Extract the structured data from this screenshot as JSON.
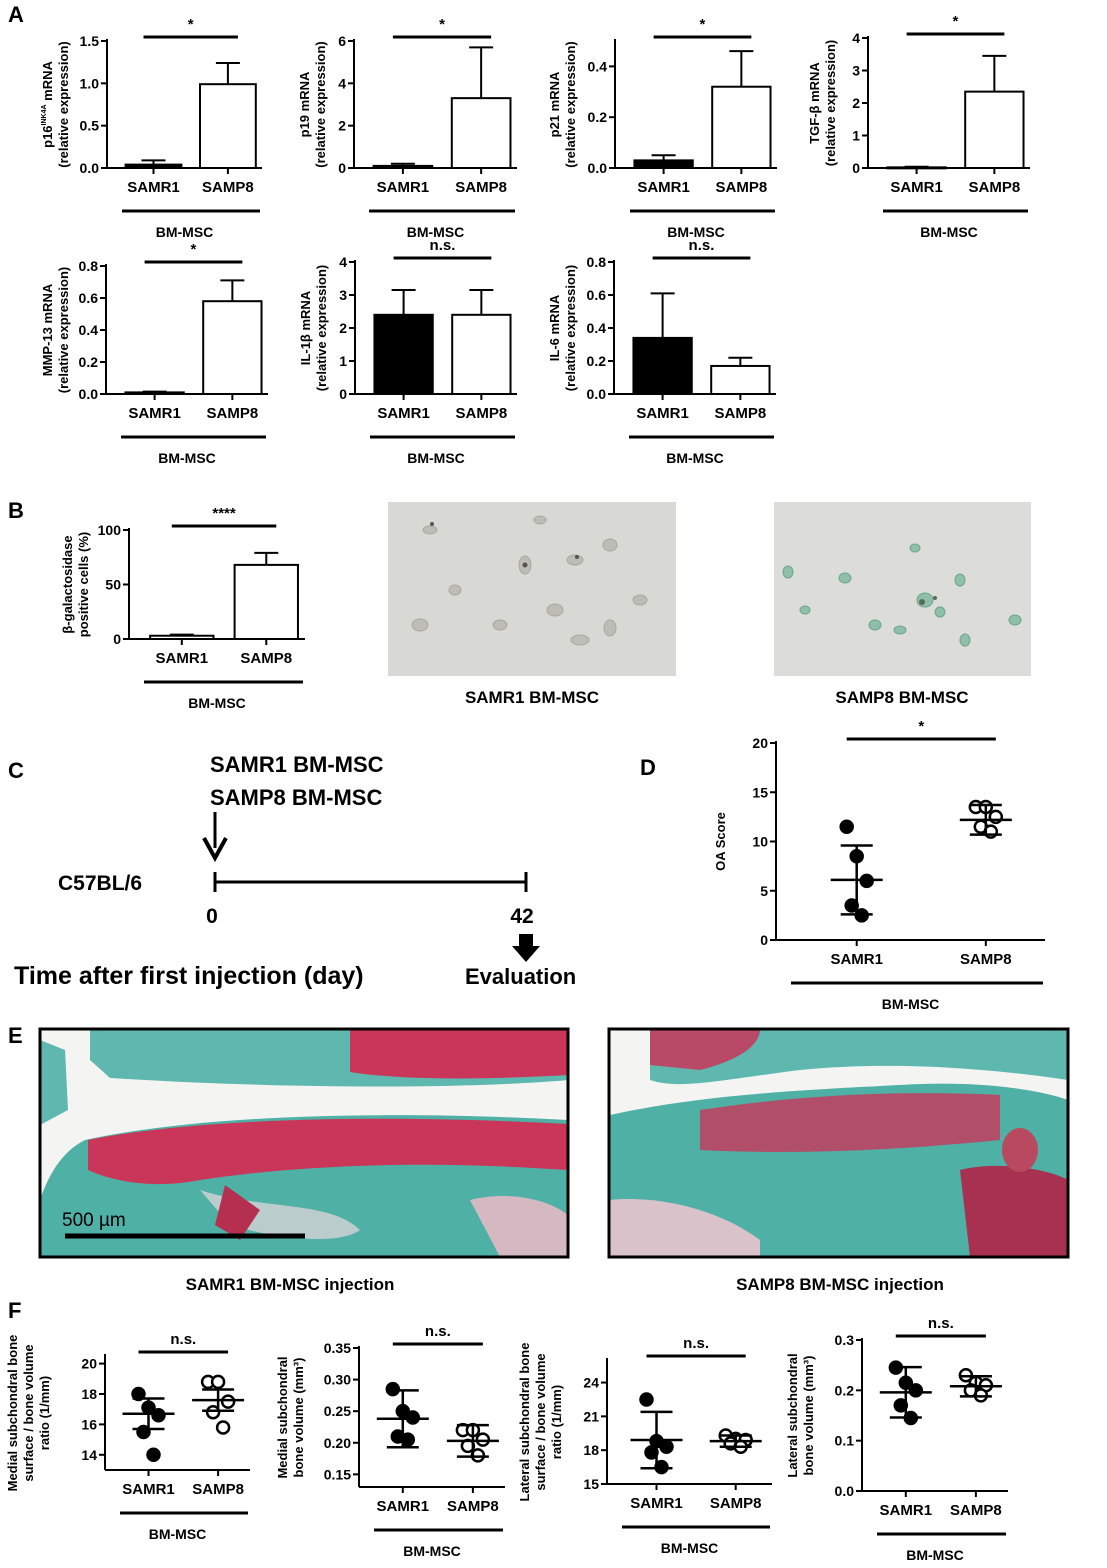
{
  "panels": {
    "A": "A",
    "B": "B",
    "C": "C",
    "D": "D",
    "E": "E",
    "F": "F"
  },
  "chart_data": [
    {
      "id": "a1",
      "type": "bar",
      "categories": [
        "SAMR1",
        "SAMP8"
      ],
      "values": [
        0.04,
        0.99
      ],
      "errors": [
        0.05,
        0.25
      ],
      "fills": [
        "#000000",
        "#ffffff"
      ],
      "ylabel_line1": "p16",
      "ylabel_sup": "INK4A",
      "ylabel_rest": " mRNA",
      "ylabel_line2": "(relative expression)",
      "ticks": [
        "0.0",
        "0.5",
        "1.0",
        "1.5"
      ],
      "ylim": [
        0,
        1.5
      ],
      "sig": "*",
      "group": "BM-MSC"
    },
    {
      "id": "a2",
      "type": "bar",
      "categories": [
        "SAMR1",
        "SAMP8"
      ],
      "values": [
        0.1,
        3.3
      ],
      "errors": [
        0.1,
        2.4
      ],
      "fills": [
        "#000000",
        "#ffffff"
      ],
      "ylabel_line1": "p19 mRNA",
      "ylabel_line2": "(relative expression)",
      "ticks": [
        "0",
        "2",
        "4",
        "6"
      ],
      "ylim": [
        0,
        6
      ],
      "sig": "*",
      "group": "BM-MSC"
    },
    {
      "id": "a3",
      "type": "bar",
      "categories": [
        "SAMR1",
        "SAMP8"
      ],
      "values": [
        0.03,
        0.32
      ],
      "errors": [
        0.02,
        0.14
      ],
      "fills": [
        "#000000",
        "#ffffff"
      ],
      "ylabel_line1": "p21 mRNA",
      "ylabel_line2": "(relative expression)",
      "ticks": [
        "0.0",
        "0.2",
        "0.4"
      ],
      "ylim": [
        0,
        0.5
      ],
      "sig": "*",
      "group": "BM-MSC"
    },
    {
      "id": "a4",
      "type": "bar",
      "categories": [
        "SAMR1",
        "SAMP8"
      ],
      "values": [
        0.02,
        2.35
      ],
      "errors": [
        0.02,
        1.1
      ],
      "fills": [
        "#000000",
        "#ffffff"
      ],
      "ylabel_line1": "TGF-β mRNA",
      "ylabel_line2": "(relative expression)",
      "ticks": [
        "0",
        "1",
        "2",
        "3",
        "4"
      ],
      "ylim": [
        0,
        4
      ],
      "sig": "*",
      "group": "BM-MSC"
    },
    {
      "id": "a5",
      "type": "bar",
      "categories": [
        "SAMR1",
        "SAMP8"
      ],
      "values": [
        0.01,
        0.58
      ],
      "errors": [
        0.005,
        0.13
      ],
      "fills": [
        "#000000",
        "#ffffff"
      ],
      "ylabel_line1": "MMP-13 mRNA",
      "ylabel_line2": "(relative expression)",
      "ticks": [
        "0.0",
        "0.2",
        "0.4",
        "0.6",
        "0.8"
      ],
      "ylim": [
        0,
        0.8
      ],
      "sig": "*",
      "group": "BM-MSC"
    },
    {
      "id": "a6",
      "type": "bar",
      "categories": [
        "SAMR1",
        "SAMP8"
      ],
      "values": [
        2.4,
        2.4
      ],
      "errors": [
        0.75,
        0.75
      ],
      "fills": [
        "#000000",
        "#ffffff"
      ],
      "ylabel_line1": "IL-1β mRNA",
      "ylabel_line2": "(relative expression)",
      "ticks": [
        "0",
        "1",
        "2",
        "3",
        "4"
      ],
      "ylim": [
        0,
        4
      ],
      "sig": "n.s.",
      "group": "BM-MSC"
    },
    {
      "id": "a7",
      "type": "bar",
      "categories": [
        "SAMR1",
        "SAMP8"
      ],
      "values": [
        0.34,
        0.17
      ],
      "errors": [
        0.27,
        0.05
      ],
      "fills": [
        "#000000",
        "#ffffff"
      ],
      "ylabel_line1": "IL-6 mRNA",
      "ylabel_line2": "(relative expression)",
      "ticks": [
        "0.0",
        "0.2",
        "0.4",
        "0.6",
        "0.8"
      ],
      "ylim": [
        0,
        0.8
      ],
      "sig": "n.s.",
      "group": "BM-MSC"
    },
    {
      "id": "b1",
      "type": "bar",
      "categories": [
        "SAMR1",
        "SAMP8"
      ],
      "values": [
        3,
        68
      ],
      "errors": [
        1,
        11
      ],
      "fills": [
        "#ffffff",
        "#ffffff"
      ],
      "ylabel_line1": "β-galactosidase",
      "ylabel_line2": "positive cells (%)",
      "ticks": [
        "0",
        "50",
        "100"
      ],
      "ylim": [
        0,
        100
      ],
      "sig": "****",
      "group": "BM-MSC"
    },
    {
      "id": "d",
      "type": "scatter",
      "categories": [
        "SAMR1",
        "SAMP8"
      ],
      "ylabel_line1": "OA Score",
      "ticks": [
        "0",
        "5",
        "10",
        "15",
        "20"
      ],
      "ylim": [
        0,
        20
      ],
      "points": [
        [
          11.5,
          8.5,
          6,
          3.5,
          2.5
        ],
        [
          13.5,
          13.5,
          12.5,
          11.5,
          11
        ]
      ],
      "means": [
        6.1,
        12.2
      ],
      "sds": [
        3.5,
        1.5
      ],
      "filled": [
        true,
        false
      ],
      "sig": "*",
      "group": "BM-MSC"
    },
    {
      "id": "f1",
      "type": "scatter",
      "categories": [
        "SAMR1",
        "SAMP8"
      ],
      "ylabel_line1": "Medial subchondral bone",
      "ylabel_line2": "surface / bone volume",
      "ylabel_line3": "ratio (1/mm)",
      "ticks": [
        "14",
        "16",
        "18",
        "20"
      ],
      "ylim": [
        13,
        20.5
      ],
      "points": [
        [
          18,
          17.1,
          16.6,
          15.5,
          14
        ],
        [
          18.8,
          18.8,
          17.5,
          16.8,
          15.8
        ]
      ],
      "means": [
        16.7,
        17.6
      ],
      "sds": [
        1.0,
        0.7
      ],
      "filled": [
        true,
        false
      ],
      "sig": "n.s.",
      "group": "BM-MSC"
    },
    {
      "id": "f2",
      "type": "scatter",
      "categories": [
        "SAMR1",
        "SAMP8"
      ],
      "ylabel_line1": "Medial subchondral",
      "ylabel_line2": "bone volume (mm³)",
      "ticks": [
        "0.15",
        "0.20",
        "0.25",
        "0.30",
        "0.35"
      ],
      "ylim": [
        0.13,
        0.35
      ],
      "points": [
        [
          0.285,
          0.25,
          0.24,
          0.21,
          0.205
        ],
        [
          0.22,
          0.22,
          0.205,
          0.195,
          0.18
        ]
      ],
      "means": [
        0.238,
        0.203
      ],
      "sds": [
        0.045,
        0.025
      ],
      "filled": [
        true,
        false
      ],
      "sig": "n.s.",
      "group": "BM-MSC"
    },
    {
      "id": "f3",
      "type": "scatter",
      "categories": [
        "SAMR1",
        "SAMP8"
      ],
      "ylabel_line1": "Lateral subchondral bone",
      "ylabel_line2": "surface / bone volume",
      "ylabel_line3": "ratio (1/mm)",
      "ticks": [
        "15",
        "18",
        "21",
        "24"
      ],
      "ylim": [
        15,
        26
      ],
      "points": [
        [
          22.5,
          18.8,
          18.3,
          17.8,
          16.5
        ],
        [
          19.3,
          19,
          18.9,
          18.6,
          18.3
        ]
      ],
      "means": [
        18.9,
        18.8
      ],
      "sds": [
        2.5,
        0.5
      ],
      "filled": [
        true,
        false
      ],
      "sig": "n.s.",
      "group": "BM-MSC"
    },
    {
      "id": "f4",
      "type": "scatter",
      "categories": [
        "SAMR1",
        "SAMP8"
      ],
      "ylabel_line1": "Lateral subchondral",
      "ylabel_line2": "bone volume (mm³)",
      "ticks": [
        "0.0",
        "0.1",
        "0.2",
        "0.3"
      ],
      "ylim": [
        0,
        0.3
      ],
      "points": [
        [
          0.245,
          0.215,
          0.2,
          0.17,
          0.145
        ],
        [
          0.23,
          0.215,
          0.21,
          0.2,
          0.19
        ]
      ],
      "means": [
        0.196,
        0.208
      ],
      "sds": [
        0.05,
        0.02
      ],
      "filled": [
        true,
        false
      ],
      "sig": "n.s.",
      "group": "BM-MSC"
    }
  ],
  "micrographs": {
    "b_left_caption": "SAMR1 BM-MSC",
    "b_right_caption": "SAMP8 BM-MSC",
    "e_left_caption": "SAMR1 BM-MSC injection",
    "e_right_caption": "SAMP8 BM-MSC injection",
    "scale_bar": "500 µm"
  },
  "timeline": {
    "line1": "SAMR1 BM-MSC",
    "line2": "SAMP8 BM-MSC",
    "strain": "C57BL/6",
    "start": "0",
    "end": "42",
    "axis_label": "Time after first injection (day)",
    "evaluation": "Evaluation"
  }
}
